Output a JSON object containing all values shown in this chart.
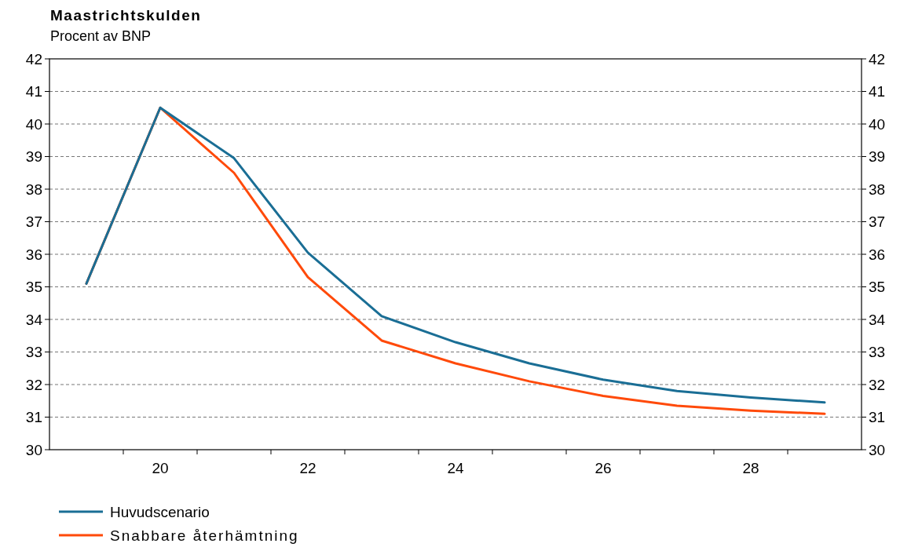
{
  "chart_data": {
    "type": "line",
    "title": "Maastrichtskulden",
    "subtitle": "Procent av BNP",
    "categories": [
      null,
      "20",
      null,
      "22",
      null,
      "24",
      null,
      "26",
      null,
      "28",
      null
    ],
    "series": [
      {
        "name": "Huvudscenario",
        "color": "#1a6e95",
        "values": [
          35.1,
          40.5,
          38.95,
          36.05,
          34.1,
          33.3,
          32.65,
          32.15,
          31.8,
          31.6,
          31.45
        ]
      },
      {
        "name": "Snabbare återhämtning",
        "color": "#ff4a0a",
        "values": [
          35.1,
          40.5,
          38.5,
          35.3,
          33.35,
          32.65,
          32.1,
          31.65,
          31.35,
          31.2,
          31.1
        ]
      }
    ],
    "ylim": [
      30,
      42
    ],
    "yticks": [
      30,
      31,
      32,
      33,
      34,
      35,
      36,
      37,
      38,
      39,
      40,
      41,
      42
    ],
    "y2lim": [
      30,
      42
    ],
    "y2ticks": [
      30,
      31,
      32,
      33,
      34,
      35,
      36,
      37,
      38,
      39,
      40,
      41,
      42
    ],
    "grid": "y",
    "legend": "bottom left",
    "line_style": "solid"
  }
}
